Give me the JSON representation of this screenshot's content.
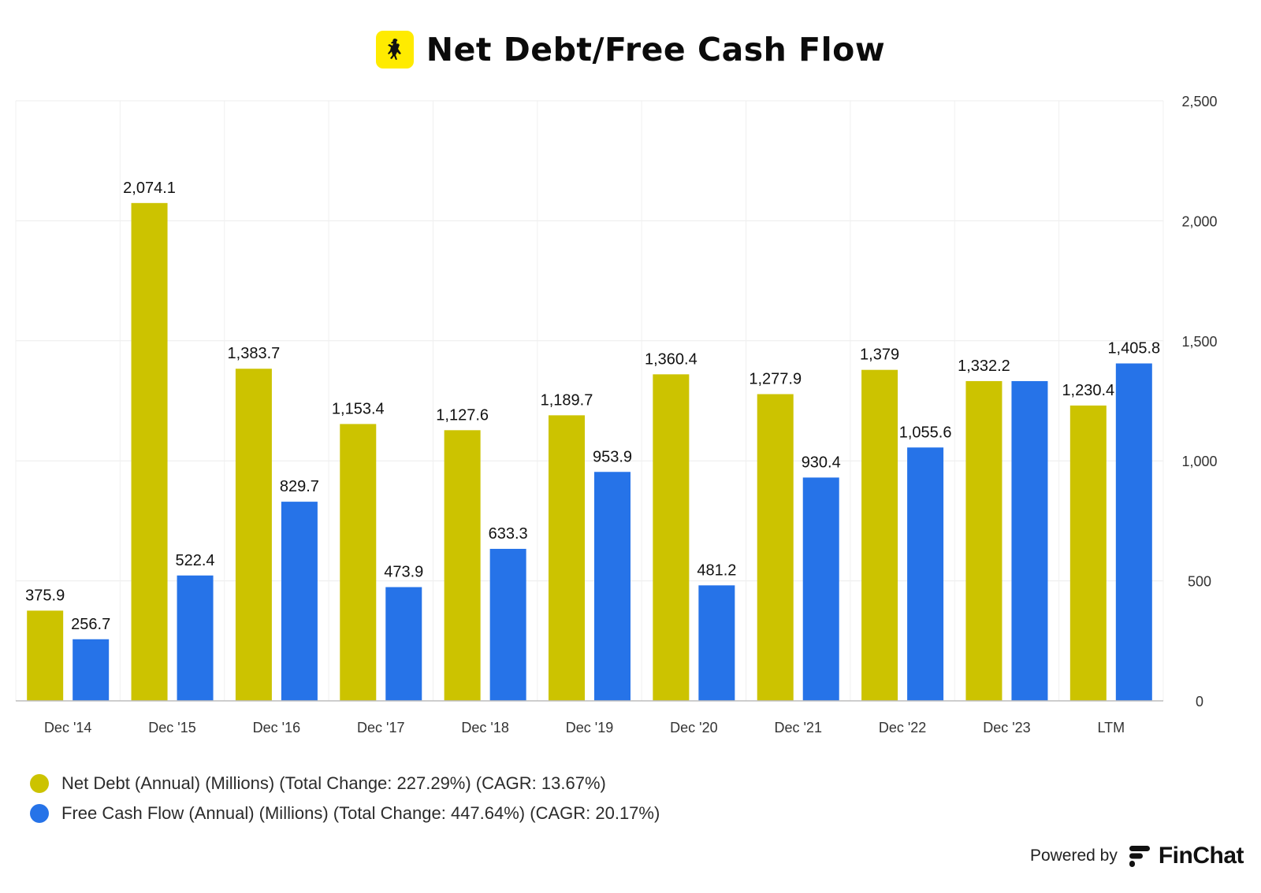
{
  "title": "Net Debt/Free Cash Flow",
  "logo_icon": "ferrari-prancing-horse-icon",
  "powered_by": {
    "label": "Powered by",
    "brand": "FinChat",
    "icon": "finchat-logo-icon"
  },
  "colors": {
    "net_debt": "#CCC300",
    "fcf": "#2673E8",
    "logo_bg": "#FFEB00"
  },
  "chart_data": {
    "type": "bar",
    "categories": [
      "Dec '14",
      "Dec '15",
      "Dec '16",
      "Dec '17",
      "Dec '18",
      "Dec '19",
      "Dec '20",
      "Dec '21",
      "Dec '22",
      "Dec '23",
      "LTM"
    ],
    "series": [
      {
        "name": "Net Debt (Annual) (Millions) (Total Change: 227.29%) (CAGR: 13.67%)",
        "color": "#CCC300",
        "values": [
          375.9,
          2074.1,
          1383.7,
          1153.4,
          1127.6,
          1189.7,
          1360.4,
          1277.9,
          1379,
          1332.2,
          1230.4
        ],
        "labels": [
          "375.9",
          "2,074.1",
          "1,383.7",
          "1,153.4",
          "1,127.6",
          "1,189.7",
          "1,360.4",
          "1,277.9",
          "1,379",
          "1,332.2",
          "1,230.4"
        ]
      },
      {
        "name": "Free Cash Flow (Annual) (Millions) (Total Change: 447.64%) (CAGR: 20.17%)",
        "color": "#2673E8",
        "values": [
          256.7,
          522.4,
          829.7,
          473.9,
          633.3,
          953.9,
          481.2,
          930.4,
          1055.6,
          1332.2,
          1405.8
        ],
        "labels": [
          "256.7",
          "522.4",
          "829.7",
          "473.9",
          "633.3",
          "953.9",
          "481.2",
          "930.4",
          "1,055.6",
          "",
          "1,405.8"
        ]
      }
    ],
    "y_ticks": [
      "0",
      "500",
      "1,000",
      "1,500",
      "2,000",
      "2,500"
    ],
    "ylim": [
      0,
      2500
    ],
    "y_axis_side": "right",
    "grid": true,
    "legend_position": "bottom-left"
  }
}
